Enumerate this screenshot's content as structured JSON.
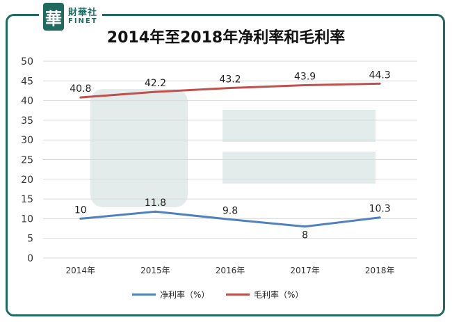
{
  "brand": {
    "logo_char": "華",
    "name_cn": "財華社",
    "name_en": "FINET"
  },
  "colors": {
    "frame": "#1f6b5f",
    "net_margin": "#4f81bd",
    "gross_margin": "#c0504d",
    "grid": "#d9d9d9"
  },
  "chart_data": {
    "type": "line",
    "title": "2014年至2018年净利率和毛利率",
    "categories": [
      "2014年",
      "2015年",
      "2016年",
      "2017年",
      "2018年"
    ],
    "ylim": [
      0,
      50
    ],
    "yticks": [
      0,
      5,
      10,
      15,
      20,
      25,
      30,
      35,
      40,
      45,
      50
    ],
    "grid": true,
    "legend_position": "bottom",
    "series": [
      {
        "name": "净利率（%）",
        "values": [
          10,
          11.8,
          9.8,
          8,
          10.3
        ],
        "labels": [
          "10",
          "11.8",
          "9.8",
          "8",
          "10.3"
        ]
      },
      {
        "name": "毛利率（%）",
        "values": [
          40.8,
          42.2,
          43.2,
          43.9,
          44.3
        ],
        "labels": [
          "40.8",
          "42.2",
          "43.2",
          "43.9",
          "44.3"
        ]
      }
    ]
  }
}
